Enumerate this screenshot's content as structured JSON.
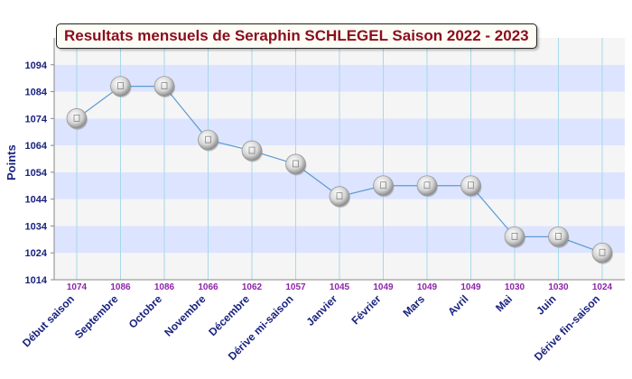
{
  "chart_data": {
    "type": "line",
    "title": "Resultats mensuels de Seraphin SCHLEGEL Saison 2022 - 2023",
    "ylabel": "Points",
    "xlabel": "",
    "categories": [
      "Début saison",
      "Septembre",
      "Octobre",
      "Novembre",
      "Décembre",
      "Dérive mi-saison",
      "Janvier",
      "Février",
      "Mars",
      "Avril",
      "Mai",
      "Juin",
      "Dérive fin-saison"
    ],
    "series": [
      {
        "values": [
          1074,
          1086,
          1086,
          1066,
          1062,
          1057,
          1045,
          1049,
          1049,
          1049,
          1030,
          1030,
          1024
        ]
      }
    ],
    "y_ticks": [
      1014,
      1024,
      1034,
      1044,
      1054,
      1064,
      1074,
      1084,
      1094
    ],
    "ylim": [
      1014,
      1104
    ],
    "grid": "alternating horizontal bands, vertical lines at categories",
    "colors": {
      "band": "#dde4ff",
      "band_alt": "#f5f5f5",
      "line": "#5b9bd5",
      "vertical_grid": "#a8d8e8",
      "tick_text": "#1a237e",
      "value_text": "#8e24aa",
      "title_text": "#8b0d1d"
    }
  }
}
